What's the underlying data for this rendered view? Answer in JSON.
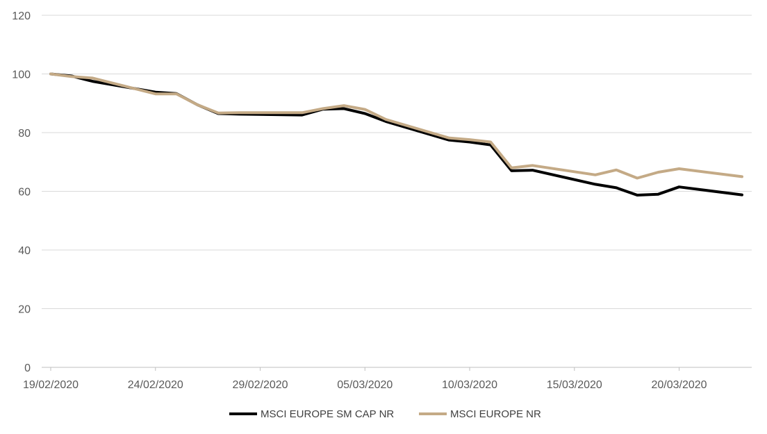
{
  "chart_data": {
    "type": "line",
    "title": "",
    "xlabel": "",
    "ylabel": "",
    "ylim": [
      0,
      120
    ],
    "yticks": [
      0,
      20,
      40,
      60,
      80,
      100,
      120
    ],
    "xlim": [
      "19/02/2020",
      "23/03/2020"
    ],
    "xticks": [
      "19/02/2020",
      "24/02/2020",
      "29/02/2020",
      "05/03/2020",
      "10/03/2020",
      "15/03/2020",
      "20/03/2020"
    ],
    "grid": "horizontal",
    "legend": "bottom",
    "colors": {
      "grid": "#d9d9d9",
      "axis": "#bfbfbf",
      "tick_text": "#595959"
    },
    "x": [
      "19/02/2020",
      "20/02/2020",
      "21/02/2020",
      "24/02/2020",
      "25/02/2020",
      "26/02/2020",
      "27/02/2020",
      "28/02/2020",
      "02/03/2020",
      "03/03/2020",
      "04/03/2020",
      "05/03/2020",
      "06/03/2020",
      "09/03/2020",
      "10/03/2020",
      "11/03/2020",
      "12/03/2020",
      "13/03/2020",
      "16/03/2020",
      "17/03/2020",
      "18/03/2020",
      "19/03/2020",
      "20/03/2020",
      "23/03/2020"
    ],
    "series": [
      {
        "name": "MSCI EUROPE SM CAP NR",
        "color": "#000000",
        "values": [
          100,
          99.3,
          97.5,
          93.8,
          93.3,
          89.5,
          86.5,
          86.3,
          86.0,
          88.0,
          88.2,
          86.5,
          83.8,
          77.5,
          76.8,
          75.8,
          67.0,
          67.2,
          62.4,
          61.2,
          58.7,
          59.0,
          61.5,
          58.8
        ]
      },
      {
        "name": "MSCI EUROPE NR",
        "color": "#c4aa86",
        "values": [
          100,
          99.1,
          98.6,
          93.2,
          93.2,
          89.5,
          86.7,
          86.8,
          86.8,
          88.2,
          89.2,
          87.9,
          84.5,
          78.2,
          77.6,
          76.8,
          68.0,
          68.8,
          65.6,
          67.3,
          64.5,
          66.5,
          67.7,
          65.0
        ]
      }
    ]
  }
}
